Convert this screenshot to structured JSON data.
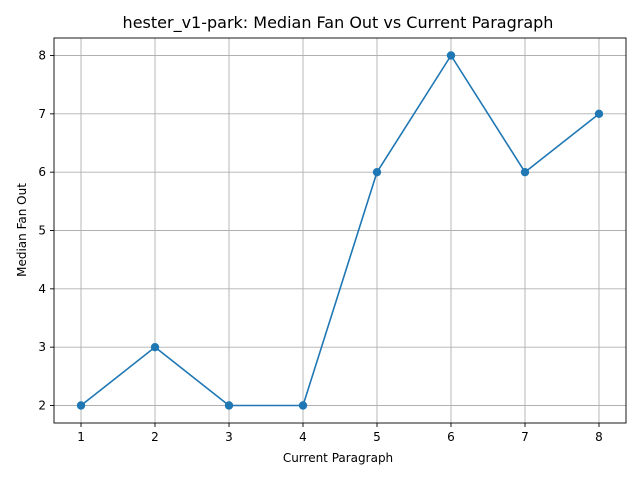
{
  "chart_data": {
    "type": "line",
    "title": "hester_v1-park: Median Fan Out vs Current Paragraph",
    "xlabel": "Current Paragraph",
    "ylabel": "Median Fan Out",
    "x": [
      1,
      2,
      3,
      4,
      5,
      6,
      7,
      8
    ],
    "series": [
      {
        "name": "Median Fan Out",
        "values": [
          2,
          3,
          2,
          2,
          6,
          8,
          6,
          7
        ],
        "color": "#1f77b4",
        "marker": "circle"
      }
    ],
    "xlim": [
      0.635,
      8.365
    ],
    "ylim": [
      1.7,
      8.3
    ],
    "xticks": [
      1,
      2,
      3,
      4,
      5,
      6,
      7,
      8
    ],
    "yticks": [
      2,
      3,
      4,
      5,
      6,
      7,
      8
    ],
    "grid": true
  }
}
